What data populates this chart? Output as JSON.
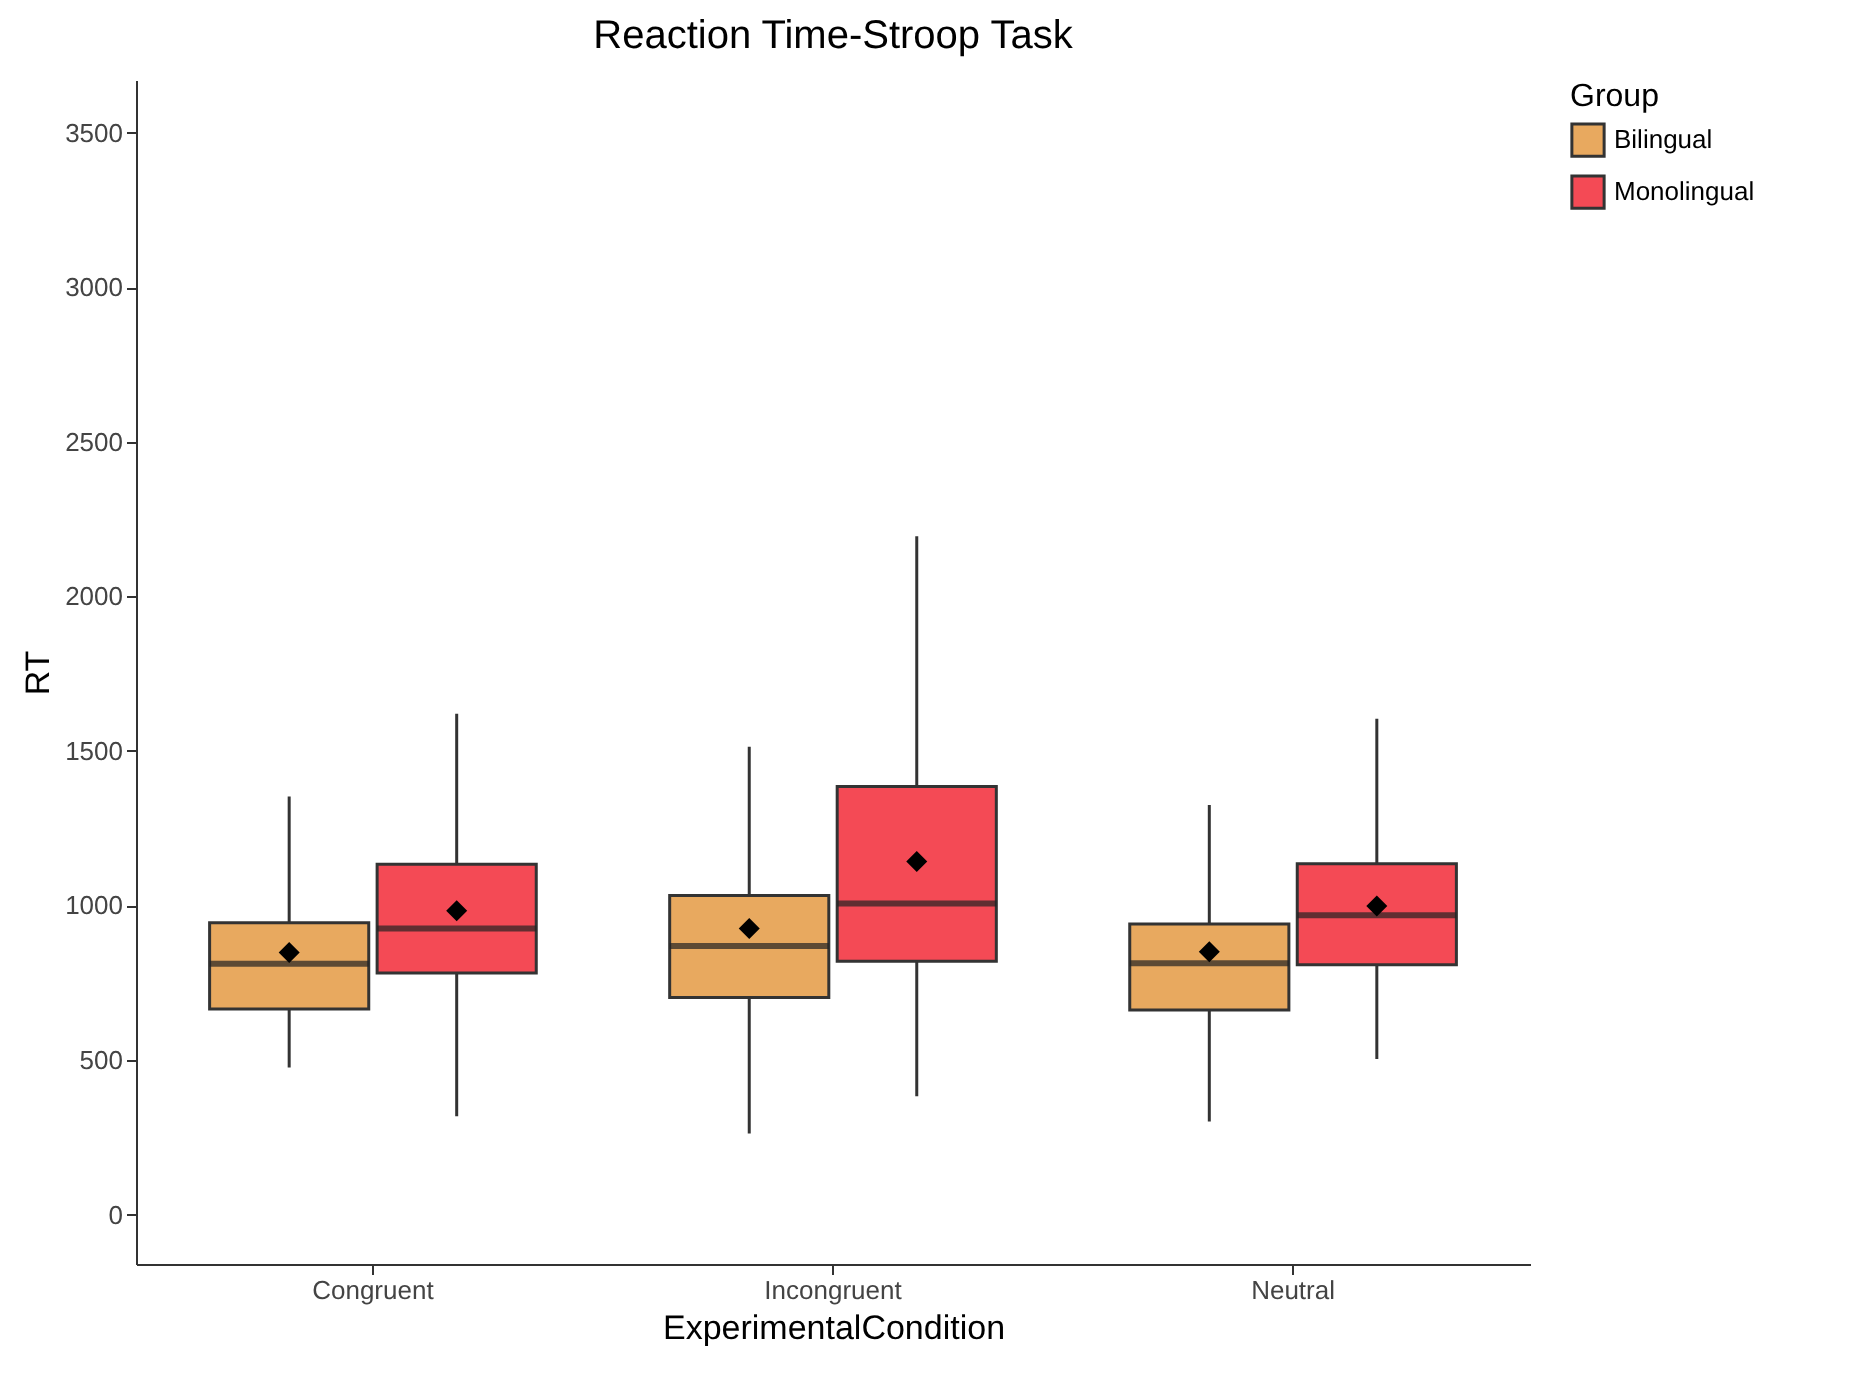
{
  "chart_data": {
    "type": "box",
    "title": "Reaction Time-Stroop Task",
    "xlabel": "ExperimentalCondition",
    "ylabel": "RT",
    "legend_title": "Group",
    "legend": "right",
    "categories": [
      "Congruent",
      "Incongruent",
      "Neutral"
    ],
    "ylim": [
      -160,
      3670
    ],
    "yticks": [
      0,
      500,
      1000,
      1500,
      2000,
      2500,
      3000,
      3500
    ],
    "series": [
      {
        "name": "Bilingual",
        "color": "#e8a95f",
        "boxes": [
          {
            "low": 476,
            "q1": 665,
            "median": 811,
            "q3": 944,
            "high": 1352,
            "mean": 848
          },
          {
            "low": 262,
            "q1": 702,
            "median": 869,
            "q3": 1032,
            "high": 1513,
            "mean": 925
          },
          {
            "low": 301,
            "q1": 662,
            "median": 813,
            "q3": 940,
            "high": 1325,
            "mean": 850
          }
        ]
      },
      {
        "name": "Monolingual",
        "color": "#f44a55",
        "boxes": [
          {
            "low": 318,
            "q1": 781,
            "median": 925,
            "q3": 1133,
            "high": 1620,
            "mean": 983
          },
          {
            "low": 383,
            "q1": 819,
            "median": 1006,
            "q3": 1385,
            "high": 2194,
            "mean": 1142
          },
          {
            "low": 503,
            "q1": 808,
            "median": 968,
            "q3": 1135,
            "high": 1604,
            "mean": 998
          }
        ]
      }
    ]
  }
}
